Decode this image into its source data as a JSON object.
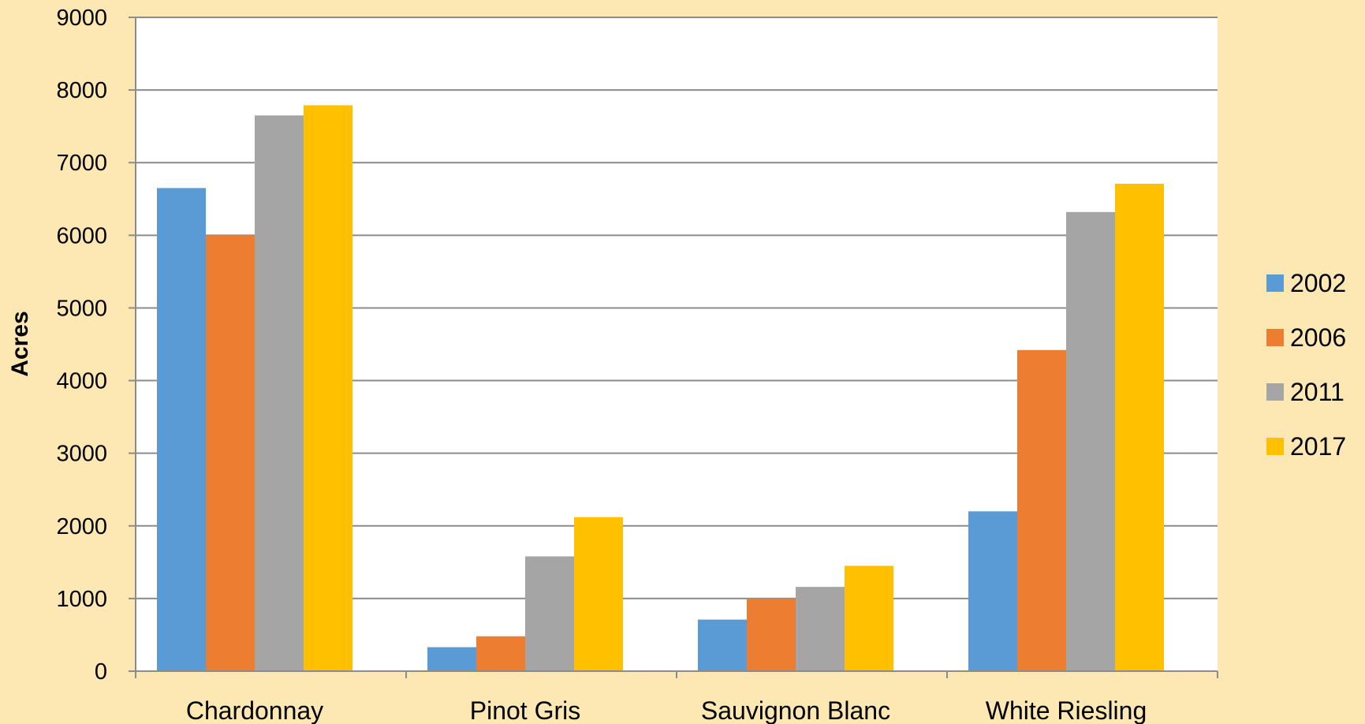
{
  "chart_data": {
    "type": "bar",
    "categories": [
      "Chardonnay",
      "Pinot Gris",
      "Sauvignon Blanc",
      "White Riesling"
    ],
    "series": [
      {
        "name": "2002",
        "color": "#5b9bd5",
        "values": [
          6650,
          330,
          710,
          2200
        ]
      },
      {
        "name": "2006",
        "color": "#ed7d31",
        "values": [
          6000,
          480,
          1000,
          4420
        ]
      },
      {
        "name": "2011",
        "color": "#a5a5a5",
        "values": [
          7650,
          1580,
          1160,
          6320
        ]
      },
      {
        "name": "2017",
        "color": "#ffc000",
        "values": [
          7790,
          2120,
          1450,
          6710
        ]
      }
    ],
    "ylabel": "Acres",
    "ylim": [
      0,
      9000
    ],
    "yticks": [
      0,
      1000,
      2000,
      3000,
      4000,
      5000,
      6000,
      7000,
      8000,
      9000
    ],
    "grid": true,
    "legend_position": "right",
    "background": "#fde8b4",
    "plot_background": "#ffffff"
  }
}
